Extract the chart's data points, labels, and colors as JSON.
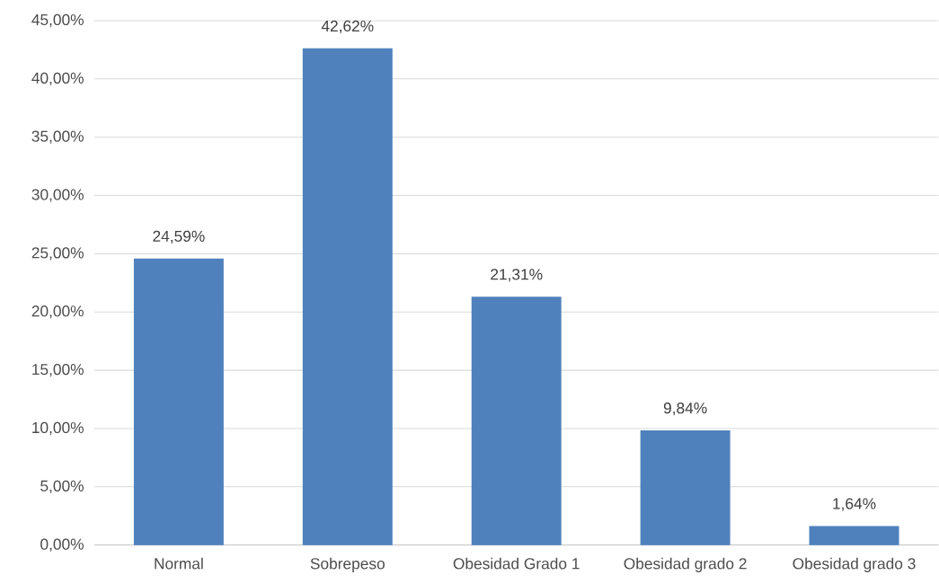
{
  "chart_data": {
    "type": "bar",
    "categories": [
      "Normal",
      "Sobrepeso",
      "Obesidad Grado 1",
      "Obesidad grado 2",
      "Obesidad grado 3"
    ],
    "values": [
      24.59,
      42.62,
      21.31,
      9.84,
      1.64
    ],
    "value_labels": [
      "24,59%",
      "42,62%",
      "21,31%",
      "9,84%",
      "1,64%"
    ],
    "color": "#4f81bd",
    "ylim": [
      0,
      45
    ],
    "yticks": [
      {
        "value": 0,
        "label": "0,00%"
      },
      {
        "value": 5,
        "label": "5,00%"
      },
      {
        "value": 10,
        "label": "10,00%"
      },
      {
        "value": 15,
        "label": "15,00%"
      },
      {
        "value": 20,
        "label": "20,00%"
      },
      {
        "value": 25,
        "label": "25,00%"
      },
      {
        "value": 30,
        "label": "30,00%"
      },
      {
        "value": 35,
        "label": "35,00%"
      },
      {
        "value": 40,
        "label": "40,00%"
      },
      {
        "value": 45,
        "label": "45,00%"
      }
    ],
    "grid": "y"
  }
}
